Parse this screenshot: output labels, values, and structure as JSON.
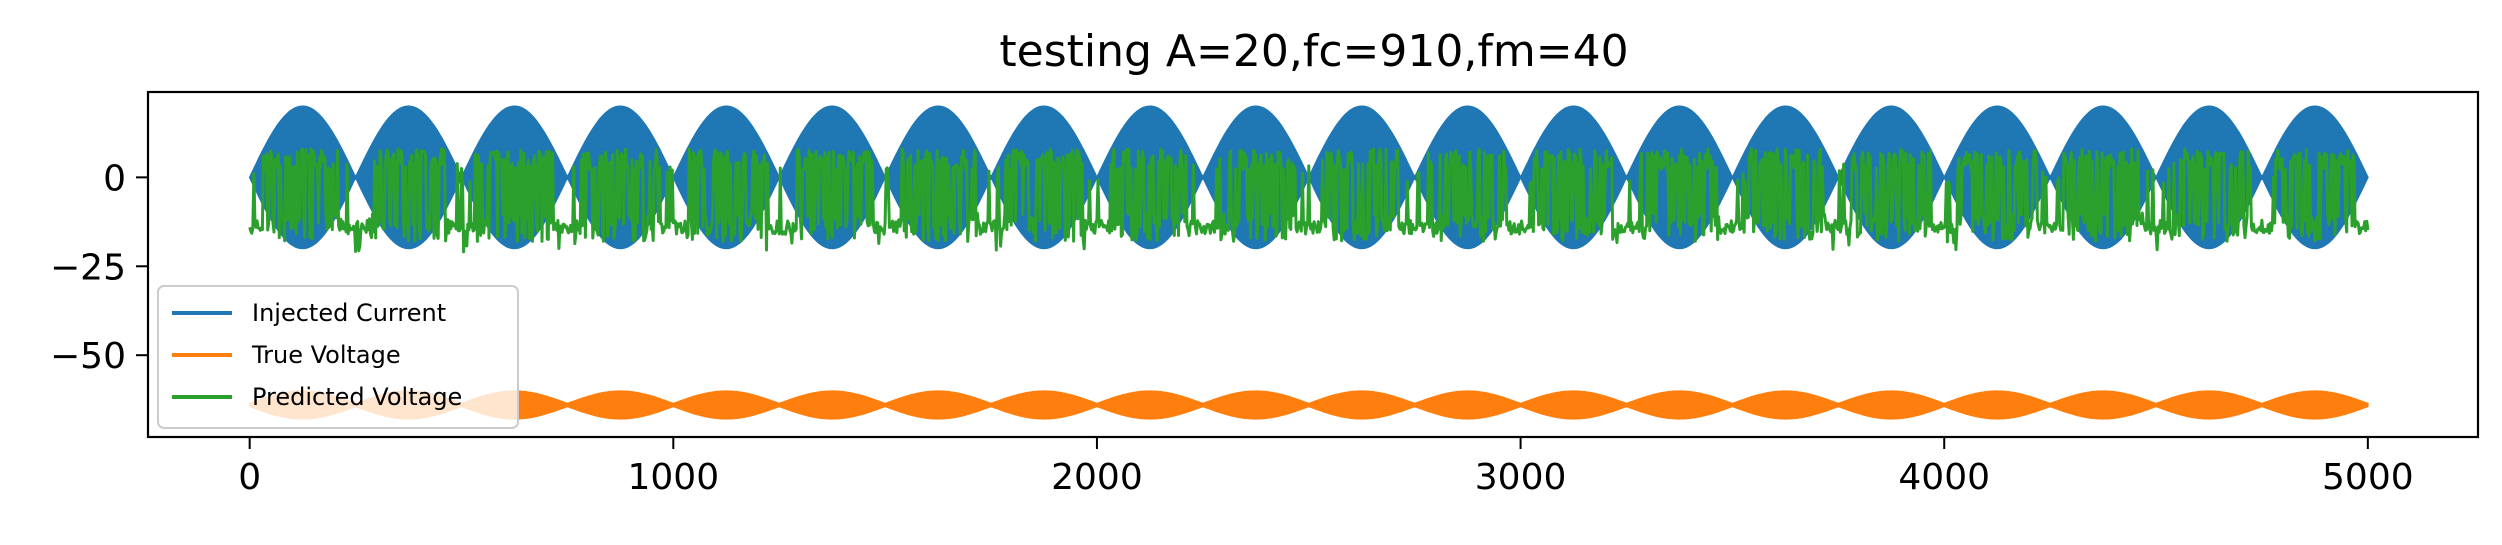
{
  "chart_data": {
    "type": "line",
    "title": "testing A=20,fc=910,fm=40",
    "xlabel": "",
    "ylabel": "",
    "xlim": [
      -240,
      5260
    ],
    "ylim": [
      -73,
      24
    ],
    "x_ticks": [
      {
        "value": 0,
        "label": "0"
      },
      {
        "value": 1000,
        "label": "1000"
      },
      {
        "value": 2000,
        "label": "2000"
      },
      {
        "value": 3000,
        "label": "3000"
      },
      {
        "value": 4000,
        "label": "4000"
      },
      {
        "value": 5000,
        "label": "5000"
      }
    ],
    "y_ticks": [
      {
        "value": 0,
        "label": "0"
      },
      {
        "value": -25,
        "label": "−25"
      },
      {
        "value": -50,
        "label": "−50"
      }
    ],
    "grid": false,
    "legend_position": "lower-left",
    "x_range": [
      0,
      5000
    ],
    "series": [
      {
        "name": "Injected Current",
        "color": "#1f77b4",
        "description_values": {
          "envelope_amplitude": 20,
          "offset": 0,
          "envelope_cycles": 20
        }
      },
      {
        "name": "True Voltage",
        "color": "#ff7f0e",
        "description_values": {
          "center": -64,
          "half_width": 3.5,
          "envelope_cycles": 20
        }
      },
      {
        "name": "Predicted Voltage",
        "color": "#2ca02c",
        "description_values": {
          "upper": 8,
          "lower_burst": -18,
          "baseline": -14,
          "min": -21,
          "envelope_cycles": 20
        }
      }
    ]
  }
}
